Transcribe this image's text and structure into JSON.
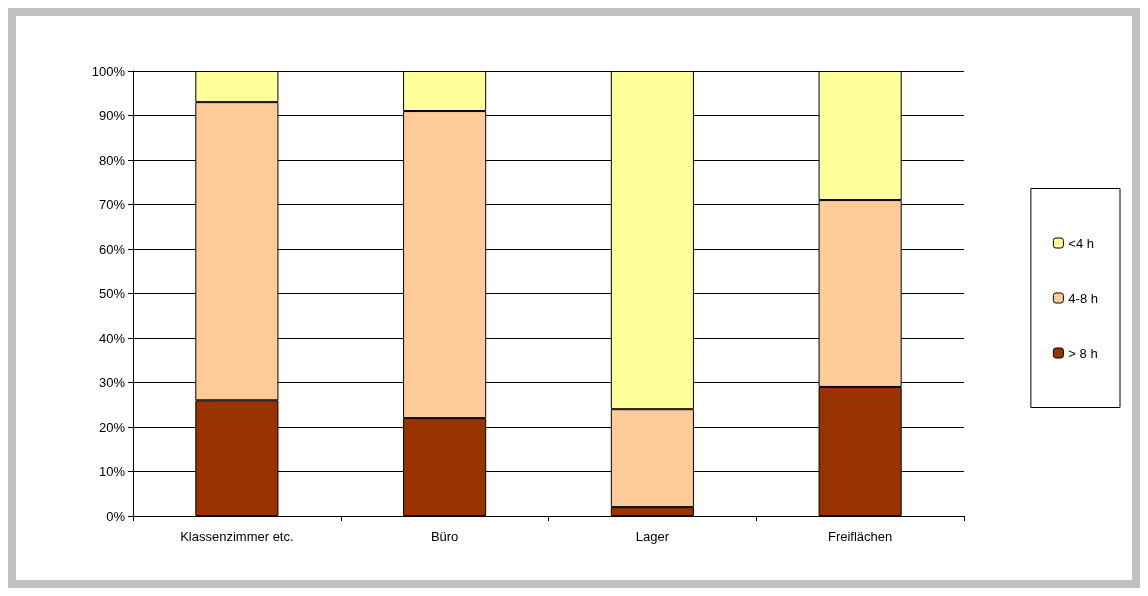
{
  "chart_data": {
    "type": "bar",
    "stacked": true,
    "categories": [
      "Klassenzimmer etc.",
      "Büro",
      "Lager",
      "Freiflächen"
    ],
    "series": [
      {
        "name": "> 8 h",
        "color": "#993300",
        "values": [
          26,
          22,
          2,
          29
        ]
      },
      {
        "name": "4-8 h",
        "color": "#ffcc99",
        "values": [
          67,
          69,
          22,
          42
        ]
      },
      {
        "name": "<4 h",
        "color": "#ffff99",
        "values": [
          7,
          9,
          76,
          29
        ]
      }
    ],
    "ylim": [
      0,
      100
    ],
    "yticks": [
      {
        "value": 0,
        "label": "0%"
      },
      {
        "value": 10,
        "label": "10%"
      },
      {
        "value": 20,
        "label": "20%"
      },
      {
        "value": 30,
        "label": "30%"
      },
      {
        "value": 40,
        "label": "40%"
      },
      {
        "value": 50,
        "label": "50%"
      },
      {
        "value": 60,
        "label": "60%"
      },
      {
        "value": 70,
        "label": "70%"
      },
      {
        "value": 80,
        "label": "80%"
      },
      {
        "value": 90,
        "label": "90%"
      },
      {
        "value": 100,
        "label": "100%"
      }
    ],
    "grid": "y",
    "legend": "right"
  }
}
